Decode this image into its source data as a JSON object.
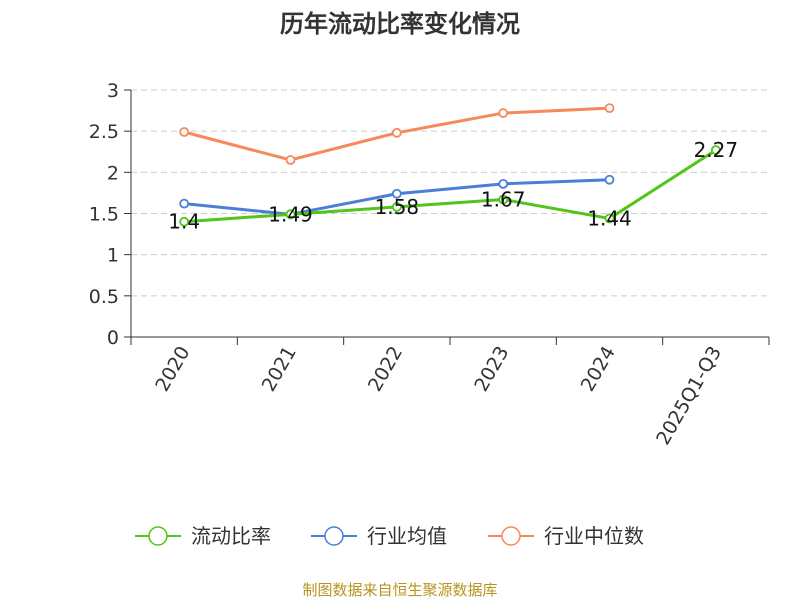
{
  "chart_data": {
    "type": "line",
    "title": "历年流动比率变化情况",
    "categories": [
      "2020",
      "2021",
      "2022",
      "2023",
      "2024",
      "2025Q1-Q3"
    ],
    "ylim": [
      0,
      3
    ],
    "yticks": [
      "0",
      "0.5",
      "1",
      "1.5",
      "2",
      "2.5",
      "3"
    ],
    "grid": true,
    "legend_position": "bottom",
    "series": [
      {
        "name": "流动比率",
        "color": "#52c41a",
        "values": [
          1.4,
          1.49,
          1.58,
          1.67,
          1.44,
          2.27
        ],
        "labels": [
          "1.4",
          "1.49",
          "1.58",
          "1.67",
          "1.44",
          "2.27"
        ]
      },
      {
        "name": "行业均值",
        "color": "#4a7fd6",
        "values": [
          1.62,
          1.49,
          1.74,
          1.86,
          1.91,
          null
        ]
      },
      {
        "name": "行业中位数",
        "color": "#f5895a",
        "values": [
          2.49,
          2.15,
          2.48,
          2.72,
          2.78,
          null
        ]
      }
    ]
  },
  "source_text": "制图数据来自恒生聚源数据库"
}
